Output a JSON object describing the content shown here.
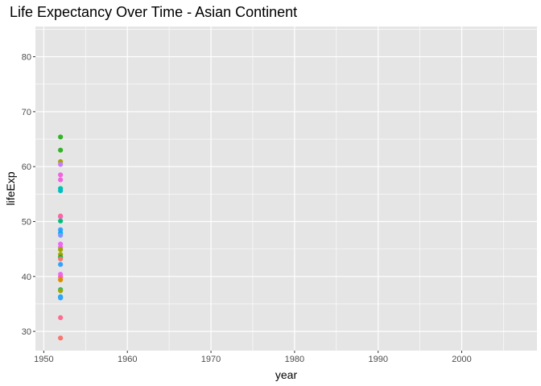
{
  "chart_data": {
    "type": "scatter",
    "title": "Life Expectancy Over Time - Asian Continent",
    "xlabel": "year",
    "ylabel": "lifeExp",
    "xlim": [
      1949,
      2009
    ],
    "ylim": [
      26.5,
      85.5
    ],
    "x_ticks": [
      1950,
      1960,
      1970,
      1980,
      1990,
      2000
    ],
    "y_ticks": [
      30,
      40,
      50,
      60,
      70,
      80
    ],
    "grid": true,
    "legend": "none",
    "panel_color": "#e5e5e5",
    "grid_color": "#ffffff",
    "points": [
      {
        "x": 1952,
        "y": 65.4,
        "color": "#31b425"
      },
      {
        "x": 1952,
        "y": 63.0,
        "color": "#31b425"
      },
      {
        "x": 1952,
        "y": 60.9,
        "color": "#a3a500"
      },
      {
        "x": 1952,
        "y": 60.4,
        "color": "#c77cff"
      },
      {
        "x": 1952,
        "y": 58.5,
        "color": "#f065e0"
      },
      {
        "x": 1952,
        "y": 57.6,
        "color": "#f065e0"
      },
      {
        "x": 1952,
        "y": 56.0,
        "color": "#00c1aa"
      },
      {
        "x": 1952,
        "y": 55.6,
        "color": "#00bfc4"
      },
      {
        "x": 1952,
        "y": 51.0,
        "color": "#f8766d"
      },
      {
        "x": 1952,
        "y": 50.9,
        "color": "#fc61b4"
      },
      {
        "x": 1952,
        "y": 50.1,
        "color": "#00bf7d"
      },
      {
        "x": 1952,
        "y": 48.5,
        "color": "#35a2ff"
      },
      {
        "x": 1952,
        "y": 47.9,
        "color": "#00b0f6"
      },
      {
        "x": 1952,
        "y": 47.5,
        "color": "#7d96ff"
      },
      {
        "x": 1952,
        "y": 45.9,
        "color": "#e76bf3"
      },
      {
        "x": 1952,
        "y": 45.3,
        "color": "#f066ea"
      },
      {
        "x": 1952,
        "y": 44.9,
        "color": "#9da700"
      },
      {
        "x": 1952,
        "y": 44.0,
        "color": "#a3a500"
      },
      {
        "x": 1952,
        "y": 43.5,
        "color": "#00ba38"
      },
      {
        "x": 1952,
        "y": 43.2,
        "color": "#f8766d"
      },
      {
        "x": 1952,
        "y": 42.2,
        "color": "#35a2ff"
      },
      {
        "x": 1952,
        "y": 40.4,
        "color": "#e76bf3"
      },
      {
        "x": 1952,
        "y": 39.9,
        "color": "#fc61b4"
      },
      {
        "x": 1952,
        "y": 39.4,
        "color": "#d89000"
      },
      {
        "x": 1952,
        "y": 37.6,
        "color": "#00c08b"
      },
      {
        "x": 1952,
        "y": 37.4,
        "color": "#a3a500"
      },
      {
        "x": 1952,
        "y": 36.3,
        "color": "#00b0f6"
      },
      {
        "x": 1952,
        "y": 36.1,
        "color": "#35a2ff"
      },
      {
        "x": 1952,
        "y": 32.5,
        "color": "#ff6c91"
      },
      {
        "x": 1952,
        "y": 28.8,
        "color": "#f8766d"
      }
    ]
  }
}
